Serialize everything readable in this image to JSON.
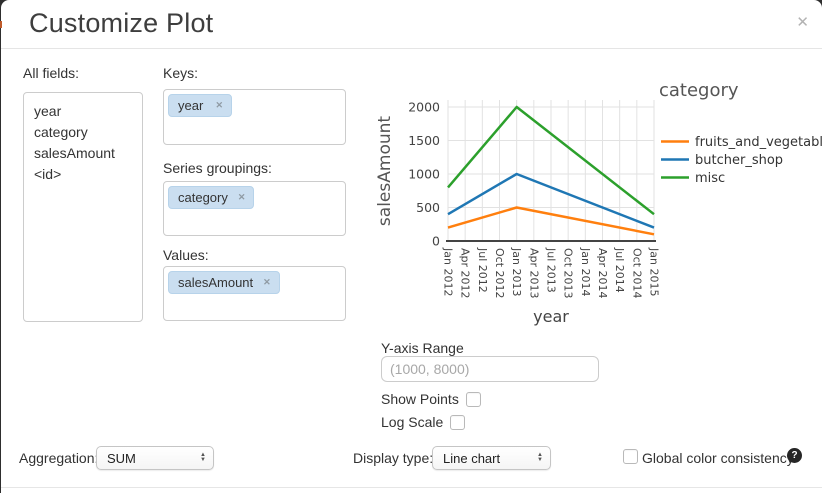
{
  "dialog": {
    "title": "Customize Plot",
    "close_icon": "✕"
  },
  "fields_panel": {
    "label": "All fields:",
    "items": [
      "year",
      "category",
      "salesAmount",
      "<id>"
    ]
  },
  "droppables": {
    "keys": {
      "label": "Keys:",
      "tags": [
        {
          "text": "year",
          "remove_icon": "✕"
        }
      ]
    },
    "series": {
      "label": "Series groupings:",
      "tags": [
        {
          "text": "category",
          "remove_icon": "✕"
        }
      ]
    },
    "values": {
      "label": "Values:",
      "tags": [
        {
          "text": "salesAmount",
          "remove_icon": "✕"
        }
      ]
    }
  },
  "options": {
    "y_axis_range_label": "Y-axis Range",
    "y_axis_range_placeholder": "(1000, 8000)",
    "y_axis_range_value": "",
    "show_points_label": "Show Points",
    "show_points_checked": false,
    "log_scale_label": "Log Scale",
    "log_scale_checked": false
  },
  "footer": {
    "aggregation_label": "Aggregation:",
    "aggregation_value": "SUM",
    "display_type_label": "Display type:",
    "display_type_value": "Line chart",
    "global_color_label": "Global color consistency",
    "global_color_checked": false,
    "help_icon": "?"
  },
  "chart_data": {
    "type": "line",
    "title": "",
    "xlabel": "year",
    "ylabel": "salesAmount",
    "legend_title": "category",
    "legend_position": "right",
    "grid": true,
    "x": [
      "Jan 2012",
      "Jan 2013",
      "Jan 2015"
    ],
    "x_ticks": [
      "Jan 2012",
      "Apr 2012",
      "Jul 2012",
      "Oct 2012",
      "Jan 2013",
      "Apr 2013",
      "Jul 2013",
      "Oct 2013",
      "Jan 2014",
      "Apr 2014",
      "Jul 2014",
      "Oct 2014",
      "Jan 2015"
    ],
    "y_ticks": [
      0,
      500,
      1000,
      1500,
      2000
    ],
    "ylim": [
      0,
      2000
    ],
    "series": [
      {
        "name": "fruits_and_vegetables",
        "color": "#ff7f0e",
        "values": [
          200,
          500,
          100
        ]
      },
      {
        "name": "butcher_shop",
        "color": "#1f77b4",
        "values": [
          400,
          1000,
          200
        ]
      },
      {
        "name": "misc",
        "color": "#2ca02c",
        "values": [
          800,
          2000,
          400
        ]
      }
    ],
    "colors": {
      "grid": "#e2e2e2",
      "axis": "#444444",
      "tick_text": "#444444",
      "axis_title": "#555555",
      "legend_text": "#333333"
    }
  }
}
